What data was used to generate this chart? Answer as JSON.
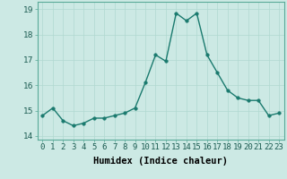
{
  "x": [
    0,
    1,
    2,
    3,
    4,
    5,
    6,
    7,
    8,
    9,
    10,
    11,
    12,
    13,
    14,
    15,
    16,
    17,
    18,
    19,
    20,
    21,
    22,
    23
  ],
  "y": [
    14.8,
    15.1,
    14.6,
    14.4,
    14.5,
    14.7,
    14.7,
    14.8,
    14.9,
    15.1,
    16.1,
    17.2,
    16.95,
    18.85,
    18.55,
    18.85,
    17.2,
    16.5,
    15.8,
    15.5,
    15.4,
    15.4,
    14.8,
    14.9
  ],
  "bg_color": "#cce9e4",
  "line_color": "#1a7a6e",
  "marker_color": "#1a7a6e",
  "grid_color": "#b0d8d0",
  "xlabel": "Humidex (Indice chaleur)",
  "ylim": [
    13.85,
    19.3
  ],
  "xlim": [
    -0.5,
    23.5
  ],
  "yticks": [
    14,
    15,
    16,
    17,
    18,
    19
  ],
  "xtick_labels": [
    "0",
    "1",
    "2",
    "3",
    "4",
    "5",
    "6",
    "7",
    "8",
    "9",
    "10",
    "11",
    "12",
    "13",
    "14",
    "15",
    "16",
    "17",
    "18",
    "19",
    "20",
    "21",
    "22",
    "23"
  ],
  "xlabel_fontsize": 7.5,
  "tick_fontsize": 6.5,
  "line_width": 1.0,
  "marker_size": 2.5
}
